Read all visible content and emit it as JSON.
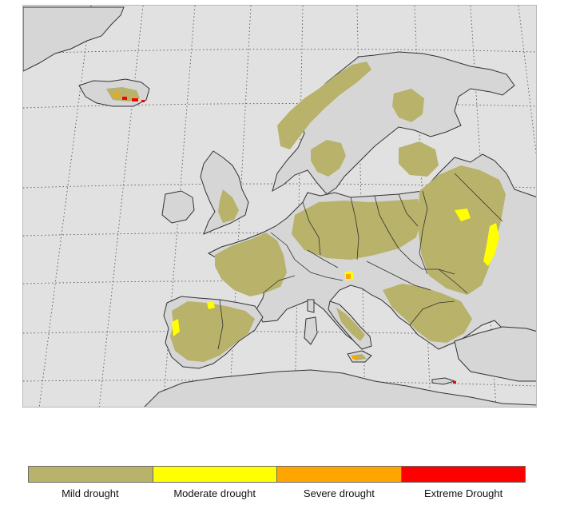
{
  "map": {
    "region": "Europe",
    "land_color": "#e1e1e1",
    "coast_color": "#3c3c3c",
    "graticule": true
  },
  "legend": {
    "classes": [
      {
        "label": "Mild drought",
        "color": "#b8b26a"
      },
      {
        "label": "Moderate drought",
        "color": "#ffff00"
      },
      {
        "label": "Severe drought",
        "color": "#ffa500"
      },
      {
        "label": "Extreme Drought",
        "color": "#ff0000"
      }
    ]
  }
}
